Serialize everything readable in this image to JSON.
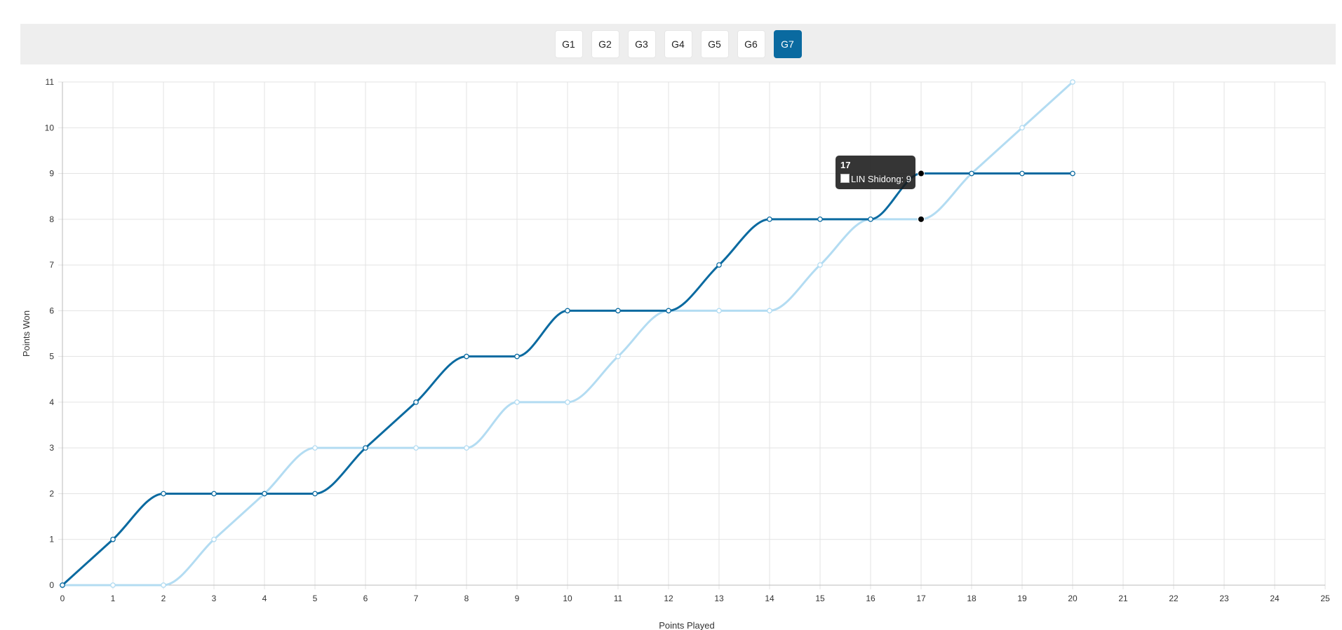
{
  "tabs": [
    {
      "label": "G1",
      "active": false
    },
    {
      "label": "G2",
      "active": false
    },
    {
      "label": "G3",
      "active": false
    },
    {
      "label": "G4",
      "active": false
    },
    {
      "label": "G5",
      "active": false
    },
    {
      "label": "G6",
      "active": false
    },
    {
      "label": "G7",
      "active": true
    }
  ],
  "chart_data": {
    "type": "line",
    "xlabel": "Points Played",
    "ylabel": "Points Won",
    "xlim": [
      0,
      25
    ],
    "ylim": [
      0,
      11
    ],
    "x_ticks": [
      0,
      1,
      2,
      3,
      4,
      5,
      6,
      7,
      8,
      9,
      10,
      11,
      12,
      13,
      14,
      15,
      16,
      17,
      18,
      19,
      20,
      21,
      22,
      23,
      24,
      25
    ],
    "y_ticks": [
      0,
      1,
      2,
      3,
      4,
      5,
      6,
      7,
      8,
      9,
      10,
      11
    ],
    "grid": true,
    "series": [
      {
        "name": "LIN Shidong",
        "color": "#0a6aa0",
        "x": [
          0,
          1,
          2,
          3,
          4,
          5,
          6,
          7,
          8,
          9,
          10,
          11,
          12,
          13,
          14,
          15,
          16,
          17,
          18,
          19,
          20
        ],
        "values": [
          0,
          1,
          2,
          2,
          2,
          2,
          3,
          4,
          5,
          5,
          6,
          6,
          6,
          7,
          8,
          8,
          8,
          9,
          9,
          9,
          9
        ]
      },
      {
        "color": "#b3dcf2",
        "x": [
          0,
          1,
          2,
          3,
          4,
          5,
          6,
          7,
          8,
          9,
          10,
          11,
          12,
          13,
          14,
          15,
          16,
          17,
          18,
          19,
          20
        ],
        "values": [
          0,
          0,
          0,
          1,
          2,
          3,
          3,
          3,
          3,
          4,
          4,
          5,
          6,
          6,
          6,
          7,
          8,
          8,
          9,
          10,
          11
        ]
      }
    ],
    "tooltip": {
      "title": "17",
      "label": "LIN Shidong: 9",
      "x": 17,
      "y": 9
    },
    "highlight_points": [
      {
        "x": 17,
        "y": 9
      },
      {
        "x": 17,
        "y": 8
      }
    ]
  }
}
